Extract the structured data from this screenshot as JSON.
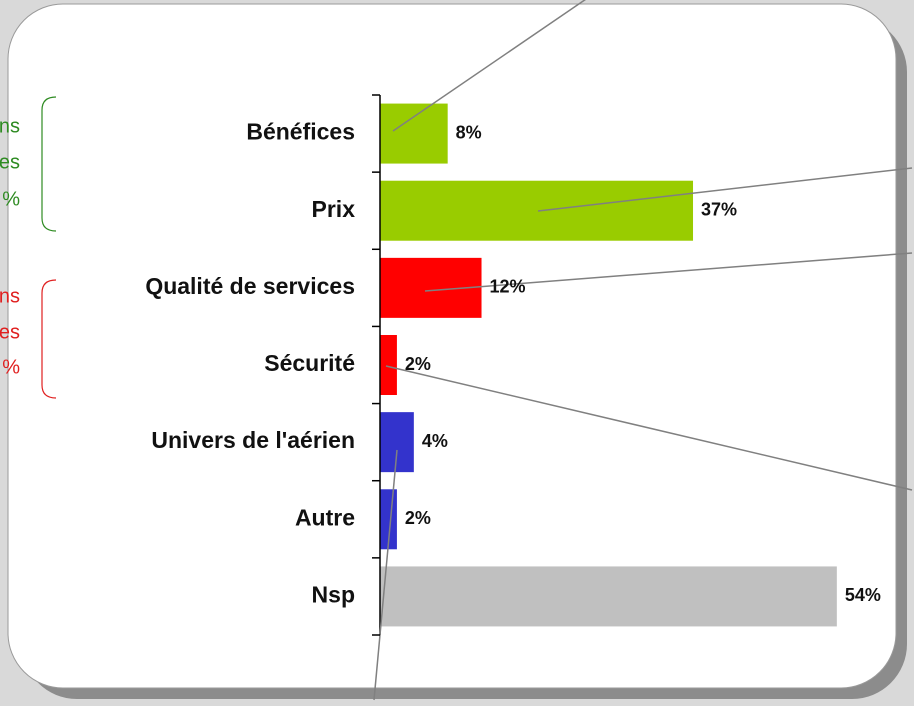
{
  "chart_data": {
    "type": "hbar",
    "categories": [
      "Bénéfices",
      "Prix",
      "Qualité de services",
      "Sécurité",
      "Univers de l'aérien",
      "Autre",
      "Nsp"
    ],
    "values": [
      8,
      37,
      12,
      2,
      4,
      2,
      54
    ],
    "value_labels": [
      "8%",
      "37%",
      "12%",
      "2%",
      "4%",
      "2%",
      "54%"
    ],
    "colors": [
      "#99cc00",
      "#99cc00",
      "#ff0000",
      "#ff0000",
      "#3333cc",
      "#3333cc",
      "#c0c0c0"
    ],
    "groups": [
      {
        "color": "#2e8b22",
        "lines": [
          "ns",
          "es",
          "%"
        ]
      },
      {
        "color": "#e02020",
        "lines": [
          "ns",
          "es",
          "%"
        ]
      }
    ]
  }
}
